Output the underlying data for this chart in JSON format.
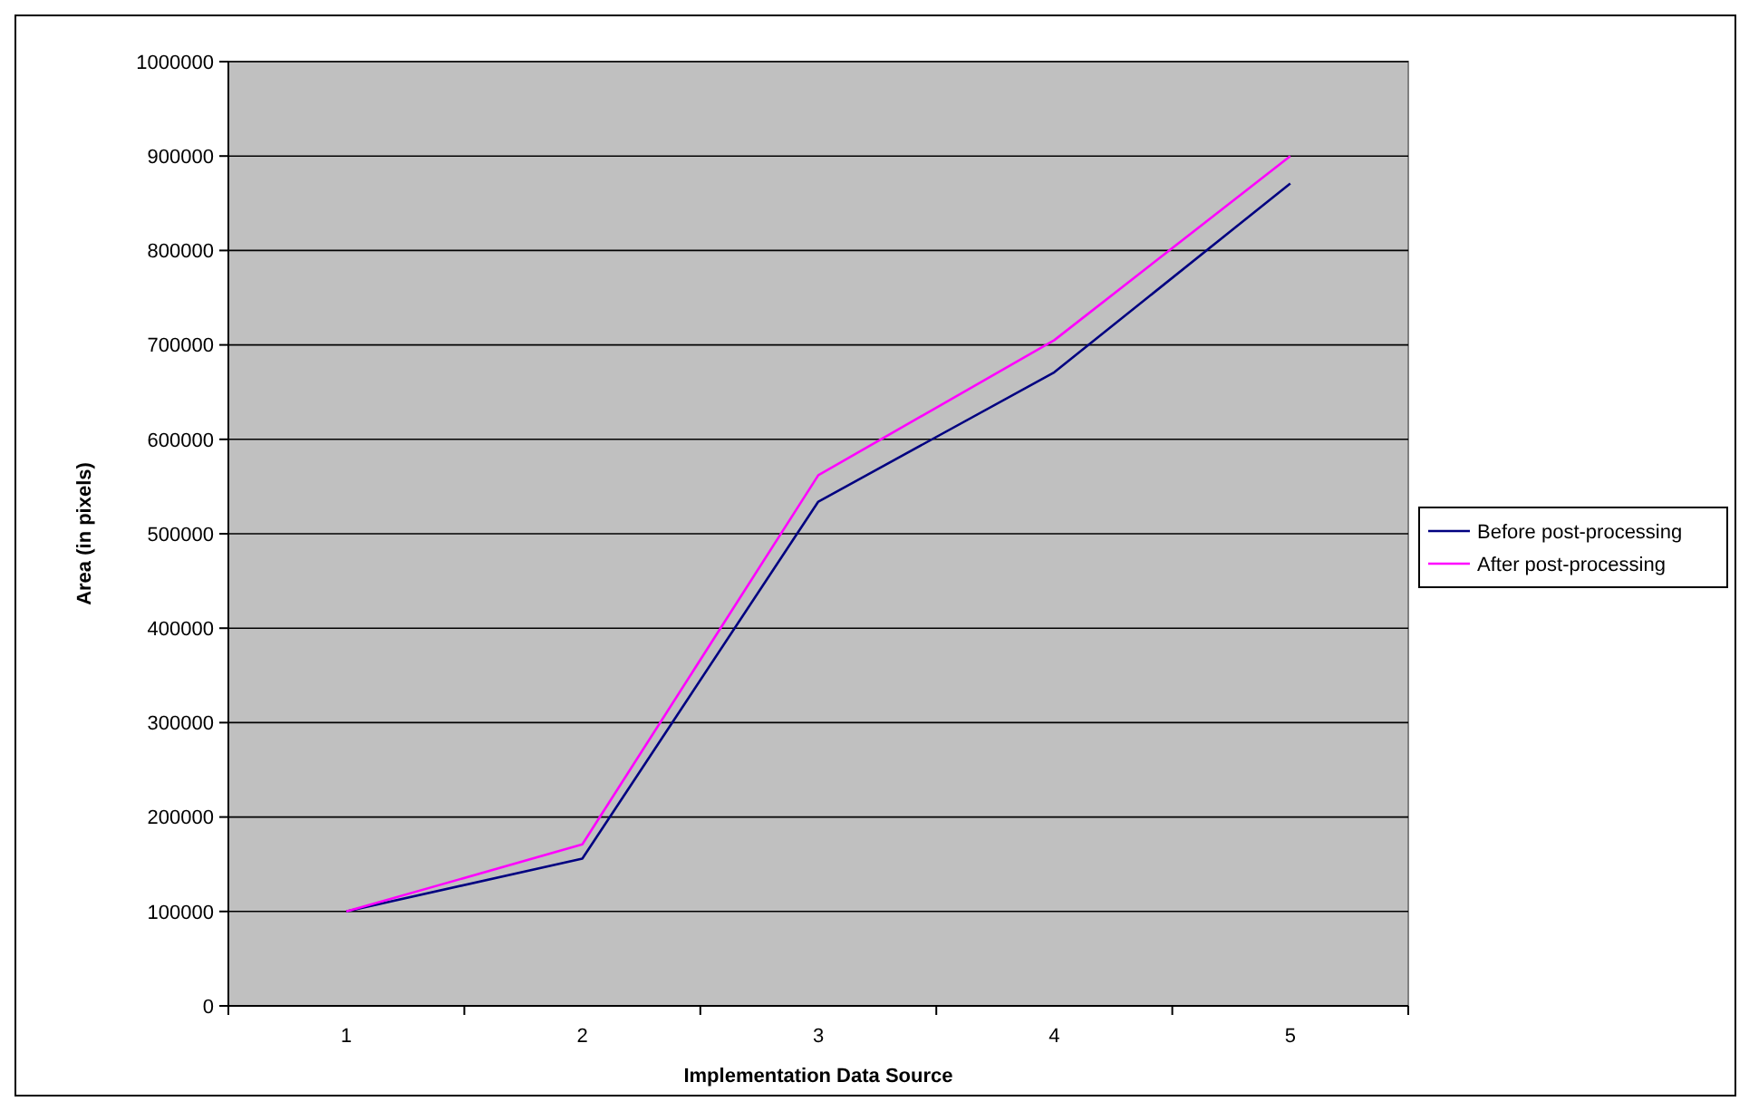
{
  "chart_data": {
    "type": "line",
    "xlabel": "Implementation Data Source",
    "ylabel": "Area (in pixels)",
    "categories": [
      "1",
      "2",
      "3",
      "4",
      "5"
    ],
    "series": [
      {
        "name": "Before post-processing",
        "color": "#000080",
        "values": [
          100000,
          156000,
          534000,
          671000,
          871000
        ]
      },
      {
        "name": "After post-processing",
        "color": "#ff00ff",
        "values": [
          100000,
          171000,
          562000,
          705000,
          900000
        ]
      }
    ],
    "ylim": [
      0,
      1000000
    ],
    "yticks": [
      0,
      100000,
      200000,
      300000,
      400000,
      500000,
      600000,
      700000,
      800000,
      900000,
      1000000
    ],
    "grid": "y",
    "legend": "right"
  }
}
